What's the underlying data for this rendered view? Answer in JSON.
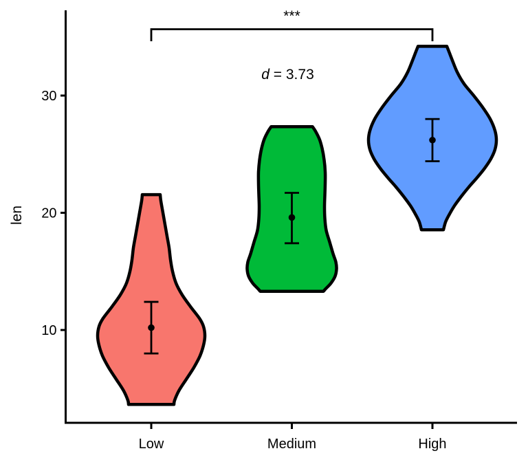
{
  "chart_data": {
    "type": "violin",
    "title": "",
    "xlabel": "",
    "ylabel": "len",
    "categories": [
      "Low",
      "Medium",
      "High"
    ],
    "y_ticks": [
      10,
      20,
      30
    ],
    "ylim": [
      2.1,
      37.3
    ],
    "grid": false,
    "legend": "none",
    "background_color": "#FFFFFF",
    "axis_color": "#000000",
    "annotations": {
      "significance": "***",
      "effect_size": "d = 3.73",
      "comparison": [
        "Low",
        "High"
      ]
    },
    "series": [
      {
        "label": "Low",
        "fill": "#F8766D",
        "outline": "#000000",
        "mean": 10.2,
        "ci": [
          8.0,
          12.4
        ],
        "range": [
          3.65,
          21.55
        ],
        "profile": [
          [
            21.55,
            13
          ],
          [
            21.0,
            14
          ],
          [
            20.0,
            17
          ],
          [
            19.0,
            20
          ],
          [
            18.0,
            23
          ],
          [
            17.0,
            26
          ],
          [
            16.0,
            28
          ],
          [
            15.0,
            31
          ],
          [
            14.0,
            36
          ],
          [
            13.0,
            45
          ],
          [
            12.0,
            57
          ],
          [
            11.0,
            70
          ],
          [
            10.3,
            76
          ],
          [
            9.5,
            78
          ],
          [
            8.7,
            76
          ],
          [
            7.8,
            71
          ],
          [
            6.8,
            62
          ],
          [
            5.8,
            51
          ],
          [
            4.8,
            40
          ],
          [
            4.0,
            34
          ],
          [
            3.65,
            33
          ]
        ]
      },
      {
        "label": "Medium",
        "fill": "#00BA38",
        "outline": "#000000",
        "mean": 19.6,
        "ci": [
          17.4,
          21.7
        ],
        "range": [
          13.3,
          27.35
        ],
        "profile": [
          [
            27.35,
            30
          ],
          [
            27.0,
            34
          ],
          [
            26.3,
            40
          ],
          [
            25.5,
            44
          ],
          [
            24.5,
            47
          ],
          [
            23.5,
            48.5
          ],
          [
            22.5,
            48.5
          ],
          [
            21.5,
            48
          ],
          [
            20.5,
            47.5
          ],
          [
            19.5,
            48
          ],
          [
            18.5,
            50
          ],
          [
            17.5,
            55
          ],
          [
            16.5,
            60
          ],
          [
            15.8,
            64
          ],
          [
            15.2,
            65
          ],
          [
            14.6,
            63
          ],
          [
            14.0,
            57
          ],
          [
            13.5,
            49
          ],
          [
            13.3,
            46
          ]
        ]
      },
      {
        "label": "High",
        "fill": "#619CFF",
        "outline": "#000000",
        "mean": 26.2,
        "ci": [
          24.4,
          28.0
        ],
        "range": [
          18.55,
          34.2
        ],
        "profile": [
          [
            34.2,
            21
          ],
          [
            33.6,
            25
          ],
          [
            33.0,
            29
          ],
          [
            32.0,
            36
          ],
          [
            31.0,
            46
          ],
          [
            30.0,
            60
          ],
          [
            29.0,
            73
          ],
          [
            28.0,
            84
          ],
          [
            27.0,
            91
          ],
          [
            26.2,
            93
          ],
          [
            25.4,
            91
          ],
          [
            24.6,
            85
          ],
          [
            23.8,
            76
          ],
          [
            23.0,
            65
          ],
          [
            22.2,
            53
          ],
          [
            21.4,
            42
          ],
          [
            20.6,
            32
          ],
          [
            19.8,
            24
          ],
          [
            19.2,
            19
          ],
          [
            18.55,
            16
          ]
        ]
      }
    ]
  }
}
